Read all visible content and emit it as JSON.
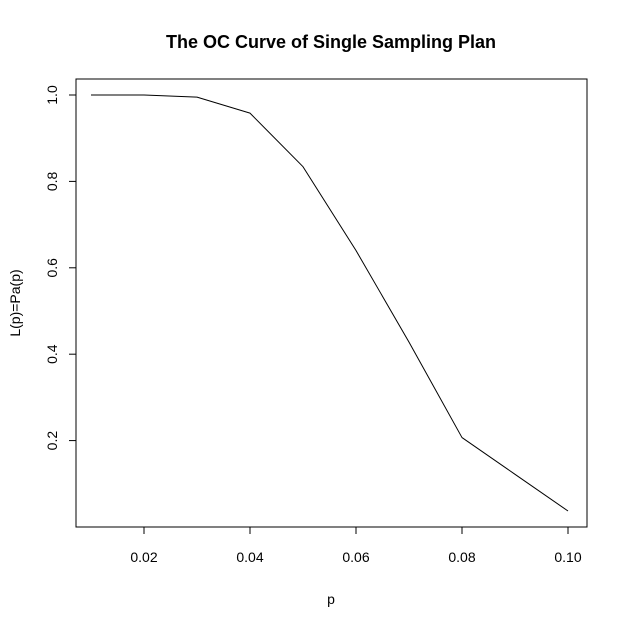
{
  "chart_data": {
    "type": "line",
    "title": "The OC Curve of Single Sampling Plan",
    "xlabel": "p",
    "ylabel": "L(p)=Pa(p)",
    "x": [
      0.01,
      0.02,
      0.03,
      0.04,
      0.05,
      0.06,
      0.07,
      0.08,
      0.09,
      0.1
    ],
    "series": [
      {
        "values": [
          1.0,
          1.0,
          0.995,
          0.958,
          0.834,
          0.64,
          0.428,
          0.207,
          0.122,
          0.037
        ]
      }
    ],
    "xlim": [
      0.01,
      0.1
    ],
    "ylim": [
      0.037,
      1.0
    ],
    "xticks": [
      0.02,
      0.04,
      0.06,
      0.08,
      0.1
    ],
    "xtick_labels": [
      "0.02",
      "0.04",
      "0.06",
      "0.08",
      "0.10"
    ],
    "yticks": [
      0.2,
      0.4,
      0.6,
      0.8,
      1.0
    ],
    "ytick_labels": [
      "0.2",
      "0.4",
      "0.6",
      "0.8",
      "1.0"
    ],
    "grid": false,
    "line_color": "#000000"
  }
}
